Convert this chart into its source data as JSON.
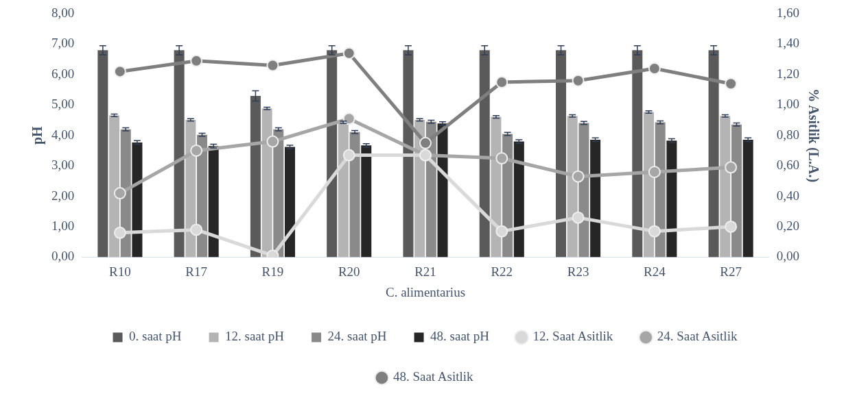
{
  "chart_data": {
    "type": "bar",
    "xlabel": "C. alimentarius",
    "ylabel": "pH",
    "y2label": "% Asitlik (L.A.)",
    "categories": [
      "R10",
      "R17",
      "R19",
      "R20",
      "R21",
      "R22",
      "R23",
      "R24",
      "R27"
    ],
    "series": [
      {
        "name": "0. saat pH",
        "color": "#5a5a5a",
        "values": [
          6.8,
          6.8,
          5.3,
          6.8,
          6.8,
          6.8,
          6.8,
          6.8,
          6.8
        ],
        "errors": [
          0.15,
          0.15,
          0.17,
          0.15,
          0.15,
          0.15,
          0.15,
          0.15,
          0.15
        ]
      },
      {
        "name": "12. saat pH",
        "color": "#b4b4b4",
        "values": [
          4.66,
          4.51,
          4.89,
          4.43,
          4.51,
          4.61,
          4.64,
          4.77,
          4.64
        ],
        "errors": [
          0.04,
          0.04,
          0.04,
          0.04,
          0.04,
          0.04,
          0.04,
          0.04,
          0.04
        ]
      },
      {
        "name": "24. saat pH",
        "color": "#8a8a8a",
        "values": [
          4.2,
          4.02,
          4.2,
          4.11,
          4.45,
          4.05,
          4.41,
          4.43,
          4.36
        ],
        "errors": [
          0.05,
          0.05,
          0.05,
          0.05,
          0.05,
          0.05,
          0.05,
          0.05,
          0.05
        ]
      },
      {
        "name": "48. saat pH",
        "color": "#262626",
        "values": [
          3.77,
          3.65,
          3.62,
          3.67,
          4.39,
          3.8,
          3.86,
          3.83,
          3.86
        ],
        "errors": [
          0.06,
          0.06,
          0.06,
          0.06,
          0.06,
          0.06,
          0.06,
          0.06,
          0.06
        ]
      },
      {
        "name": "12. Saat Asitlik",
        "type": "line",
        "axis": "y2",
        "color": "#d9d9d9",
        "values": [
          0.16,
          0.18,
          0.01,
          0.67,
          0.67,
          0.17,
          0.26,
          0.17,
          0.2
        ]
      },
      {
        "name": "24. Saat Asitlik",
        "type": "line",
        "axis": "y2",
        "color": "#a6a6a6",
        "values": [
          0.42,
          0.7,
          0.76,
          0.91,
          0.67,
          0.65,
          0.53,
          0.56,
          0.59
        ]
      },
      {
        "name": "48. Saat Asitlik",
        "type": "line",
        "axis": "y2",
        "color": "#7f7f7f",
        "values": [
          1.22,
          1.29,
          1.26,
          1.34,
          0.75,
          1.15,
          1.16,
          1.24,
          1.14
        ]
      }
    ],
    "ylim": [
      0,
      8
    ],
    "yticks": [
      {
        "value": 0,
        "label": "0,00"
      },
      {
        "value": 1,
        "label": "1,00"
      },
      {
        "value": 2,
        "label": "2,00"
      },
      {
        "value": 3,
        "label": "3,00"
      },
      {
        "value": 4,
        "label": "4,00"
      },
      {
        "value": 5,
        "label": "5,00"
      },
      {
        "value": 6,
        "label": "6,00"
      },
      {
        "value": 7,
        "label": "7,00"
      },
      {
        "value": 8,
        "label": "8,00"
      }
    ],
    "y2lim": [
      0,
      1.6
    ],
    "y2ticks": [
      {
        "value": 0,
        "label": "0,00"
      },
      {
        "value": 0.2,
        "label": "0,20"
      },
      {
        "value": 0.4,
        "label": "0,40"
      },
      {
        "value": 0.6,
        "label": "0,60"
      },
      {
        "value": 0.8,
        "label": "0,80"
      },
      {
        "value": 1,
        "label": "1,00"
      },
      {
        "value": 1.2,
        "label": "1,20"
      },
      {
        "value": 1.4,
        "label": "1,40"
      },
      {
        "value": 1.6,
        "label": "1,60"
      }
    ],
    "legend": "bottom",
    "marker": "circle"
  }
}
